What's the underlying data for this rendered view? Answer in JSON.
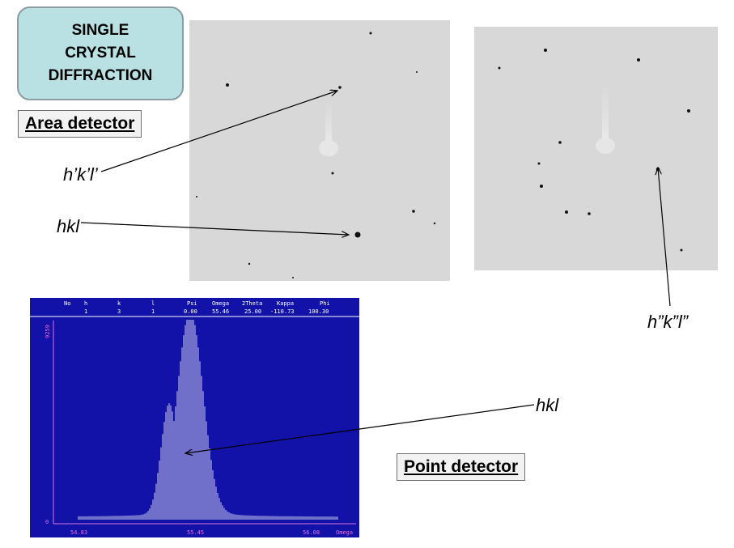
{
  "title": {
    "lines": [
      "SINGLE",
      "CRYSTAL",
      "DIFFRACTION"
    ]
  },
  "labels": {
    "area_detector": "Area detector",
    "point_detector": "Point detector"
  },
  "annotations": {
    "hkl_prime": "h’k’l’",
    "hkl_area": "hkl",
    "hkl_double_prime": "h”k”l”",
    "hkl_point": "hkl"
  },
  "scan": {
    "headers": [
      "No",
      "h",
      "k",
      "l",
      "Psi",
      "Omega",
      "2Theta",
      "Kappa",
      "Phi"
    ],
    "values": [
      "",
      "1",
      "3",
      "1",
      "0.00",
      "55.46",
      "25.00",
      "-110.73",
      "100.30"
    ],
    "y_max_label": "9259",
    "y_min_label": "0",
    "x_ticks": [
      "54.83",
      "55.45",
      "56.08"
    ],
    "x_axis_label": "Omega"
  },
  "colors": {
    "scan_background": "#1212a8",
    "scan_axis": "#e070e0",
    "scan_bars": "#ffffff",
    "title_box": "#b9e0e3"
  }
}
